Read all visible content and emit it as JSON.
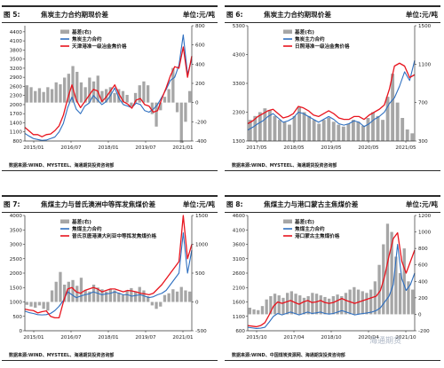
{
  "panels": [
    {
      "figure_label": "图 5:",
      "title": "焦炭主力合约期现价差",
      "unit": "单位:元/吨",
      "source": "数据来源:WIND、MYSTEEL、海通期货投资咨询部",
      "chart_data": {
        "type": "line",
        "x_ticks": [
          "2015/01",
          "2016/07",
          "2018/01",
          "2019/07",
          "2021/01"
        ],
        "ylim_left": [
          800,
          4600
        ],
        "yticks_left": [
          800,
          1100,
          1400,
          1700,
          2000,
          2300,
          2600,
          2900,
          3200,
          3500,
          3800,
          4100,
          4400
        ],
        "ylim_right": [
          -400,
          800
        ],
        "yticks_right": [
          -400,
          -200,
          0,
          200,
          400,
          600,
          800
        ],
        "legend": [
          "基差(右)",
          "焦炭主力合约",
          "天津港准一级冶金焦价格"
        ],
        "series": [
          {
            "name": "基差(右)",
            "axis": "right",
            "kind": "bar",
            "color": "#a6a6a6",
            "values": [
              180,
              160,
              120,
              150,
              110,
              160,
              140,
              210,
              190,
              260,
              300,
              380,
              320,
              210,
              160,
              260,
              220,
              280,
              120,
              140,
              160,
              100,
              140,
              120,
              80,
              -40,
              100,
              180,
              220,
              180,
              -120,
              -250,
              -80,
              60,
              140,
              360,
              -100,
              -420,
              -200,
              120
            ]
          },
          {
            "name": "焦炭主力合约",
            "axis": "left",
            "kind": "line",
            "color": "#2e6fc0",
            "values": [
              1050,
              960,
              880,
              850,
              820,
              830,
              880,
              930,
              1100,
              1380,
              1900,
              2250,
              1850,
              1700,
              1950,
              2050,
              2300,
              2150,
              2000,
              2100,
              2300,
              2550,
              2200,
              2000,
              1950,
              1900,
              2050,
              2000,
              1800,
              1750,
              1850,
              2000,
              2250,
              2500,
              2800,
              2900,
              3300,
              4300,
              3000,
              3500
            ]
          },
          {
            "name": "天津港准一级冶金焦价格",
            "axis": "left",
            "kind": "line",
            "color": "#e8141e",
            "values": [
              1250,
              1130,
              1010,
              1010,
              940,
              1010,
              1030,
              1140,
              1300,
              1650,
              2200,
              2650,
              2150,
              1900,
              2100,
              2300,
              2500,
              2450,
              2100,
              2250,
              2450,
              2650,
              2350,
              2100,
              2020,
              1880,
              2150,
              2200,
              2000,
              1950,
              1750,
              1800,
              2200,
              2550,
              2950,
              3250,
              3200,
              3900,
              2900,
              3600
            ]
          }
        ]
      }
    },
    {
      "figure_label": "图 6:",
      "title": "焦炭主力合约期现价差",
      "unit": "单位:元/吨",
      "source": "数据来源:WIND、MYSTEEL、海通期货投资咨询部",
      "chart_data": {
        "type": "line",
        "x_ticks": [
          "2017/05",
          "2018/05",
          "2019/05",
          "2020/05",
          "2021/05"
        ],
        "ylim_left": [
          1300,
          5300
        ],
        "yticks_left": [
          1300,
          2300,
          3300,
          4300,
          5300
        ],
        "ylim_right": [
          300,
          1500
        ],
        "yticks_right": [
          300,
          700,
          1100,
          1500
        ],
        "legend": [
          "基差(右)",
          "焦炭主力合约",
          "日照港准一级冶金焦价格"
        ],
        "series": [
          {
            "name": "基差(右)",
            "axis": "right",
            "kind": "bar",
            "color": "#a6a6a6",
            "values": [
              520,
              560,
              600,
              640,
              620,
              560,
              520,
              500,
              470,
              560,
              650,
              600,
              560,
              520,
              480,
              520,
              540,
              500,
              470,
              450,
              480,
              520,
              500,
              460,
              540,
              600,
              560,
              520,
              760,
              1000,
              700,
              540,
              420,
              380
            ]
          },
          {
            "name": "焦炭主力合约",
            "axis": "left",
            "kind": "line",
            "color": "#2e6fc0",
            "values": [
              1680,
              1780,
              1900,
              2000,
              2150,
              2250,
              2100,
              1950,
              2000,
              2100,
              2300,
              2250,
              2150,
              2050,
              1950,
              2050,
              2150,
              2050,
              1900,
              1850,
              1900,
              2000,
              1950,
              1800,
              1900,
              2050,
              2150,
              2300,
              2600,
              2800,
              3200,
              3700,
              3400,
              4100
            ]
          },
          {
            "name": "日照港准一级冶金焦价格",
            "axis": "left",
            "kind": "line",
            "color": "#e8141e",
            "values": [
              1900,
              2000,
              2150,
              2250,
              2350,
              2400,
              2250,
              2100,
              2150,
              2250,
              2500,
              2450,
              2350,
              2200,
              2150,
              2250,
              2350,
              2250,
              2100,
              2050,
              2050,
              2150,
              2150,
              2050,
              2200,
              2300,
              2400,
              2550,
              3100,
              3900,
              4000,
              3900,
              3500,
              3600
            ]
          }
        ]
      }
    },
    {
      "figure_label": "图 7:",
      "title": "焦煤主力与普氏澳洲中等挥发焦煤价差",
      "unit": "单位:元/吨",
      "source": "数据来源:WIND、MYSTEEL、海通期货投资咨询部",
      "chart_data": {
        "type": "line",
        "x_ticks": [
          "2015/01",
          "2016/07",
          "2018/01",
          "2019/07",
          "2021/01"
        ],
        "ylim_left": [
          0,
          4000
        ],
        "yticks_left": [
          0,
          500,
          1000,
          1500,
          2000,
          2500,
          3000,
          3500,
          4000
        ],
        "ylim_right": [
          -500,
          1500
        ],
        "yticks_right": [
          -500,
          0,
          500,
          1000,
          1500
        ],
        "legend": [
          "基差(右)",
          "焦煤主力合约",
          "普氏京唐港澳大利亚中等挥发焦煤价格"
        ],
        "series": [
          {
            "name": "基差(右)",
            "axis": "right",
            "kind": "bar",
            "color": "#a6a6a6",
            "values": [
              -50,
              -80,
              -100,
              -60,
              -120,
              -150,
              200,
              350,
              520,
              300,
              350,
              380,
              280,
              420,
              200,
              180,
              300,
              250,
              220,
              180,
              220,
              200,
              160,
              120,
              200,
              240,
              180,
              260,
              200,
              100,
              -60,
              -120,
              -80,
              120,
              150,
              220,
              180,
              260,
              200,
              180
            ]
          },
          {
            "name": "焦煤主力合约",
            "axis": "left",
            "kind": "line",
            "color": "#2e6fc0",
            "values": [
              680,
              630,
              600,
              560,
              550,
              560,
              600,
              700,
              850,
              1050,
              1350,
              1250,
              1150,
              1200,
              1250,
              1280,
              1350,
              1300,
              1250,
              1280,
              1300,
              1350,
              1300,
              1250,
              1250,
              1200,
              1230,
              1250,
              1200,
              1150,
              1180,
              1250,
              1300,
              1400,
              1600,
              1800,
              2000,
              3400,
              2000,
              2800
            ]
          },
          {
            "name": "普氏京唐港澳大利亚中等挥发焦煤价格",
            "axis": "left",
            "kind": "line",
            "color": "#e8141e",
            "values": [
              750,
              720,
              700,
              620,
              660,
              690,
              500,
              450,
              450,
              1000,
              1450,
              1500,
              1350,
              1300,
              1400,
              1450,
              1500,
              1450,
              1350,
              1400,
              1450,
              1450,
              1400,
              1350,
              1400,
              1380,
              1350,
              1300,
              1280,
              1250,
              1300,
              1450,
              1600,
              1800,
              2000,
              2200,
              2400,
              4000,
              2500,
              3000
            ]
          }
        ]
      }
    },
    {
      "figure_label": "图 8:",
      "title": "焦煤主力与港口蒙古主焦煤价差",
      "unit": "单位:元/吨",
      "source": "数据来源:WIND、中国煤炭资源网、海通期货投资咨询部",
      "chart_data": {
        "type": "line",
        "x_ticks": [
          "2015/10",
          "2017/04",
          "2018/10",
          "2020/04",
          "2021/10"
        ],
        "ylim_left": [
          600,
          4600
        ],
        "yticks_left": [
          600,
          1100,
          1600,
          2100,
          2600,
          3100,
          3600,
          4100,
          4600
        ],
        "ylim_right": [
          -200,
          1200
        ],
        "yticks_right": [
          -200,
          0,
          200,
          400,
          600,
          800,
          1000,
          1200
        ],
        "legend": [
          "基差(右)",
          "焦煤主力合约",
          "港口蒙古主焦煤价格"
        ],
        "series": [
          {
            "name": "基差(右)",
            "axis": "right",
            "kind": "bar",
            "color": "#a6a6a6",
            "values": [
              80,
              60,
              50,
              100,
              180,
              220,
              250,
              230,
              200,
              260,
              280,
              250,
              230,
              200,
              220,
              260,
              250,
              230,
              210,
              190,
              220,
              240,
              220,
              260,
              300,
              330,
              300,
              280,
              260,
              300,
              400,
              600,
              850,
              1100,
              1000,
              700,
              500,
              800,
              400,
              300
            ]
          },
          {
            "name": "焦煤主力合约",
            "axis": "left",
            "kind": "line",
            "color": "#2e6fc0",
            "values": [
              720,
              700,
              680,
              690,
              720,
              900,
              1100,
              1200,
              1150,
              1200,
              1250,
              1200,
              1150,
              1200,
              1250,
              1200,
              1220,
              1250,
              1200,
              1180,
              1200,
              1250,
              1300,
              1250,
              1200,
              1150,
              1180,
              1200,
              1220,
              1250,
              1300,
              1400,
              1600,
              1800,
              2200,
              3600,
              2400,
              2000,
              2200,
              2600
            ]
          },
          {
            "name": "港口蒙古主焦煤价格",
            "axis": "left",
            "kind": "line",
            "color": "#e8141e",
            "values": [
              780,
              760,
              740,
              780,
              880,
              1150,
              1450,
              1600,
              1550,
              1600,
              1650,
              1580,
              1520,
              1600,
              1650,
              1580,
              1600,
              1650,
              1580,
              1550,
              1580,
              1650,
              1720,
              1650,
              1600,
              1550,
              1600,
              1650,
              1700,
              1750,
              1800,
              2000,
              2500,
              3200,
              3800,
              4000,
              3000,
              2600,
              3000,
              3400
            ]
          }
        ]
      }
    }
  ],
  "watermark": "海通期货"
}
